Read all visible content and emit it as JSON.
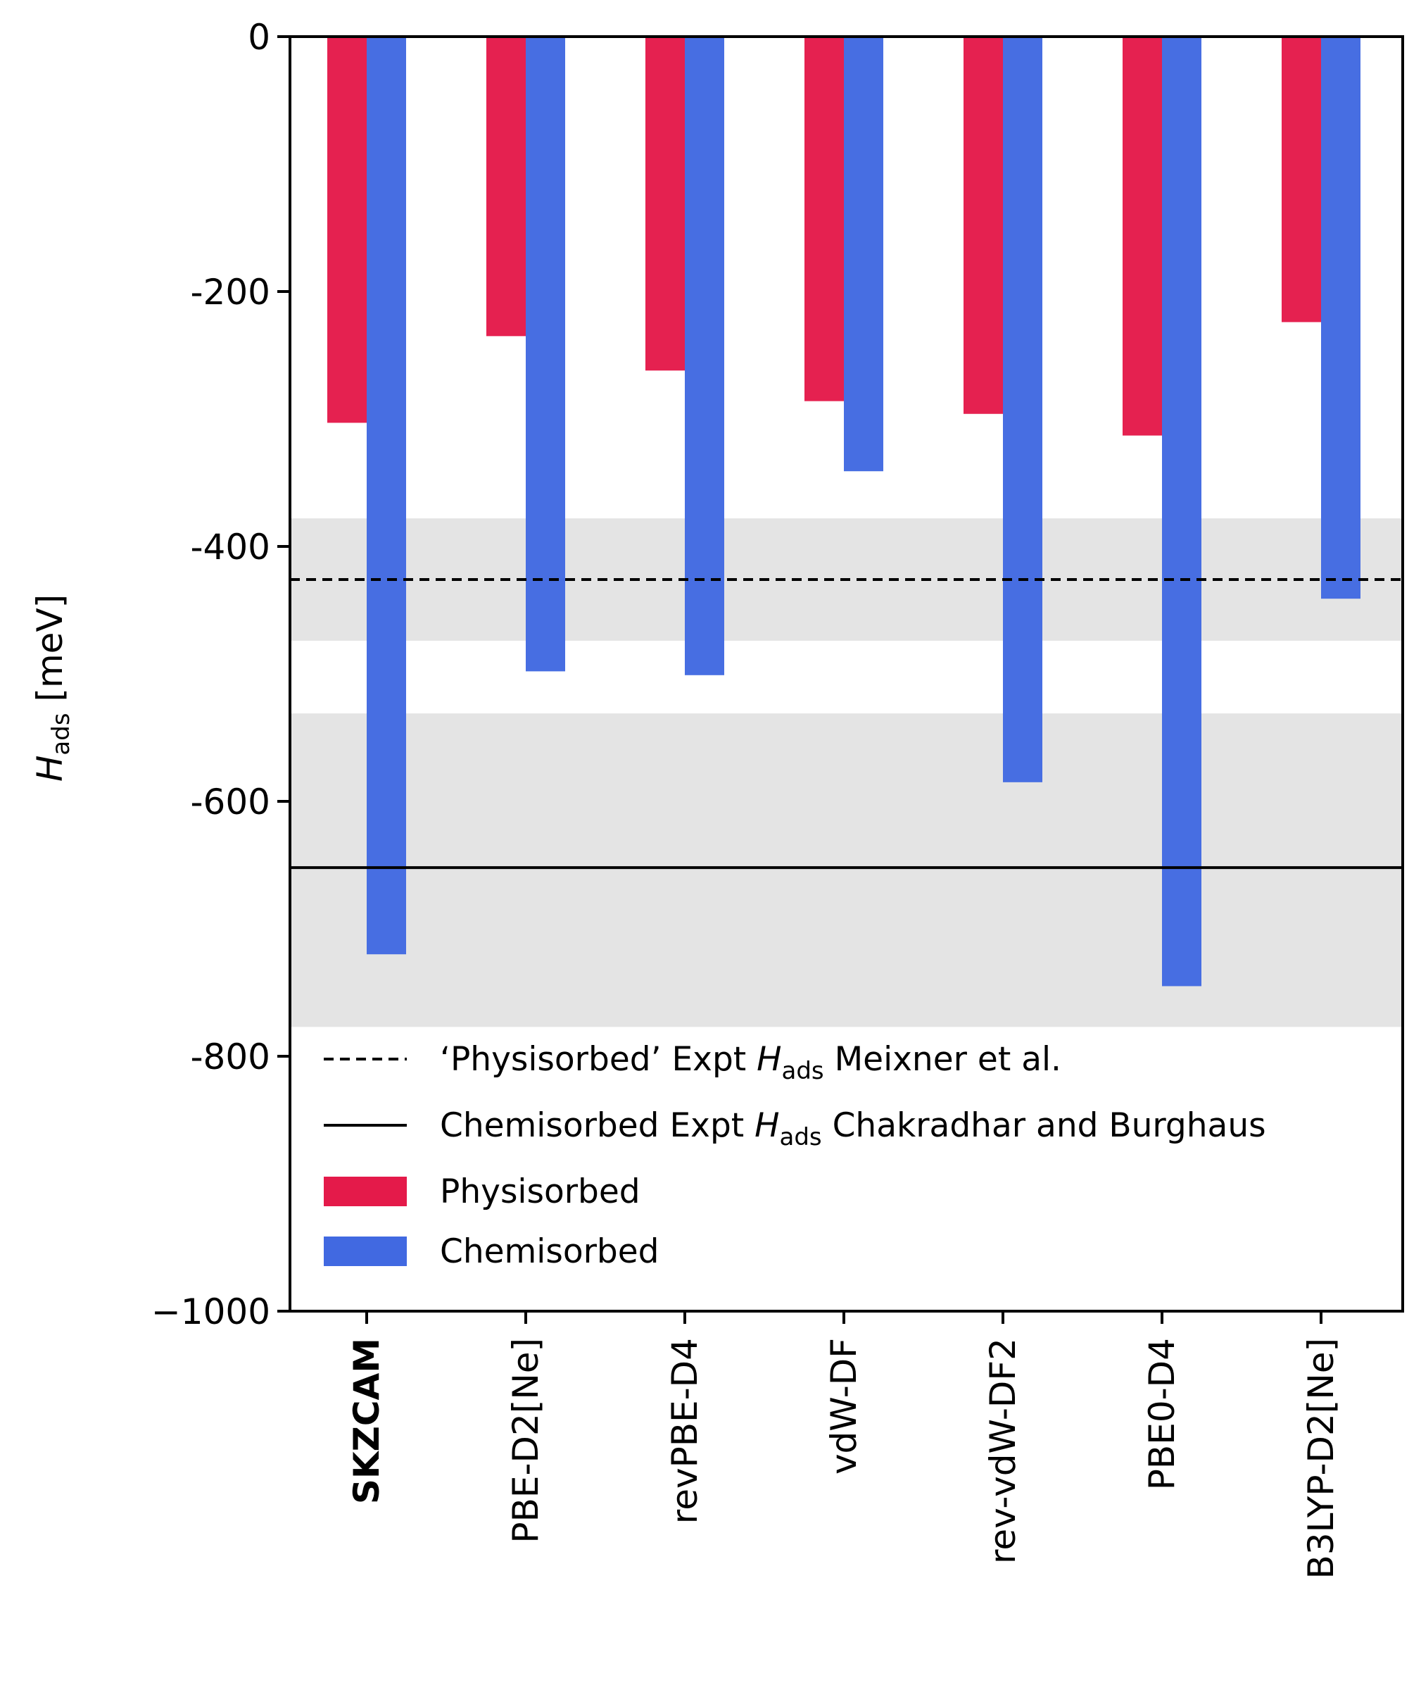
{
  "chart_data": {
    "type": "bar",
    "title": "",
    "xlabel": "",
    "ylabel": {
      "main": "H",
      "sub": "ads",
      "unit": " [meV]"
    },
    "ylim": [
      -1000,
      0
    ],
    "yticks": [
      0,
      -200,
      -400,
      -600,
      -800,
      -1000
    ],
    "ytick_labels": [
      "0",
      "-200",
      "-400",
      "-600",
      "-800",
      "−1000"
    ],
    "categories": [
      "SKZCAM",
      "PBE-D2[Ne]",
      "revPBE-D4",
      "vdW-DF",
      "rev-vdW-DF2",
      "PBE0-D4",
      "B3LYP-D2[Ne]"
    ],
    "bold_categories": [
      "SKZCAM"
    ],
    "series": [
      {
        "name": "Physisorbed",
        "color": "#e41a4a",
        "values": [
          -303,
          -235,
          -262,
          -286,
          -296,
          -313,
          -224
        ]
      },
      {
        "name": "Chemisorbed",
        "color": "#4169e1",
        "values": [
          -720,
          -498,
          -501,
          -341,
          -585,
          -745,
          -441
        ]
      }
    ],
    "bands": [
      {
        "from": -378,
        "to": -474,
        "color": "#e4e4e4"
      },
      {
        "from": -531,
        "to": -777,
        "color": "#e4e4e4"
      }
    ],
    "reference_lines": [
      {
        "y": -426,
        "style": "dashed",
        "label_parts": [
          "‘Physisorbed’ Expt ",
          "H",
          "ads",
          " Meixner et al."
        ]
      },
      {
        "y": -652,
        "style": "solid",
        "label_parts": [
          "Chemisorbed Expt ",
          "H",
          "ads",
          " Chakradhar and Burghaus"
        ]
      }
    ],
    "grid": false,
    "legend_position": "lower-left"
  }
}
